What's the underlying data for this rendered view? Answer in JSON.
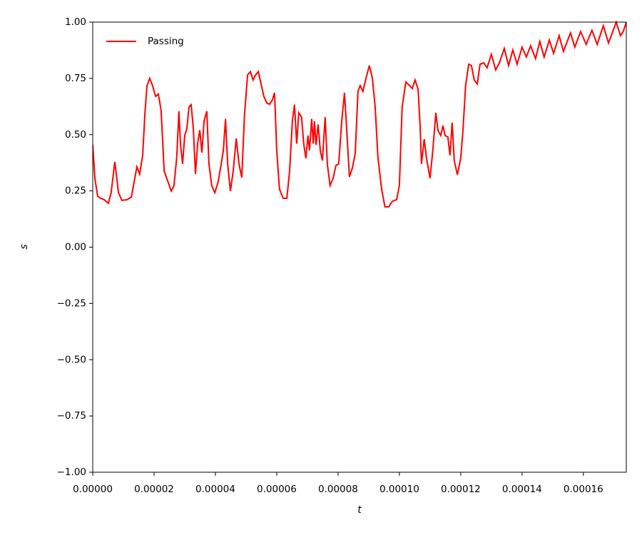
{
  "chart_data": {
    "type": "line",
    "xlabel": "t",
    "ylabel": "s",
    "xlim": [
      0,
      0.000174
    ],
    "ylim": [
      -1,
      1
    ],
    "xticks": [
      {
        "value": 0,
        "label": "0.00000"
      },
      {
        "value": 2e-05,
        "label": "0.00002"
      },
      {
        "value": 4e-05,
        "label": "0.00004"
      },
      {
        "value": 6e-05,
        "label": "0.00006"
      },
      {
        "value": 8e-05,
        "label": "0.00008"
      },
      {
        "value": 0.0001,
        "label": "0.00010"
      },
      {
        "value": 0.00012,
        "label": "0.00012"
      },
      {
        "value": 0.00014,
        "label": "0.00014"
      },
      {
        "value": 0.00016,
        "label": "0.00016"
      }
    ],
    "yticks": [
      {
        "value": -1,
        "label": "−1.00"
      },
      {
        "value": -0.75,
        "label": "−0.75"
      },
      {
        "value": -0.5,
        "label": "−0.50"
      },
      {
        "value": -0.25,
        "label": "−0.25"
      },
      {
        "value": 0,
        "label": "0.00"
      },
      {
        "value": 0.25,
        "label": "0.25"
      },
      {
        "value": 0.5,
        "label": "0.50"
      },
      {
        "value": 0.75,
        "label": "0.75"
      },
      {
        "value": 1,
        "label": "1.00"
      }
    ],
    "legend": "upper left",
    "x": [
      0,
      7e-07,
      1.6e-06,
      2.6e-06,
      3.7e-06,
      5.1e-06,
      6e-06,
      7.2e-06,
      8.4e-06,
      9.5e-06,
      1.12e-05,
      1.26e-05,
      1.35e-05,
      1.44e-05,
      1.53e-05,
      1.63e-05,
      1.7e-05,
      1.77e-05,
      1.86e-05,
      1.95e-05,
      2.05e-05,
      2.14e-05,
      2.23e-05,
      2.33e-05,
      2.44e-05,
      2.56e-05,
      2.65e-05,
      2.74e-05,
      2.81e-05,
      2.86e-05,
      2.93e-05,
      3e-05,
      3.07e-05,
      3.14e-05,
      3.21e-05,
      3.28e-05,
      3.35e-05,
      3.42e-05,
      3.49e-05,
      3.56e-05,
      3.63e-05,
      3.72e-05,
      3.79e-05,
      3.88e-05,
      3.98e-05,
      4.09e-05,
      4.19e-05,
      4.26e-05,
      4.33e-05,
      4.4e-05,
      4.49e-05,
      4.58e-05,
      4.68e-05,
      4.77e-05,
      4.86e-05,
      4.95e-05,
      5.05e-05,
      5.14e-05,
      5.23e-05,
      5.3e-05,
      5.4e-05,
      5.49e-05,
      5.58e-05,
      5.68e-05,
      5.77e-05,
      5.86e-05,
      5.93e-05,
      6e-05,
      6.09e-05,
      6.21e-05,
      6.33e-05,
      6.42e-05,
      6.51e-05,
      6.58e-05,
      6.65e-05,
      6.72e-05,
      6.81e-05,
      6.88e-05,
      6.95e-05,
      7.02e-05,
      7.07e-05,
      7.14e-05,
      7.19e-05,
      7.23e-05,
      7.28e-05,
      7.35e-05,
      7.42e-05,
      7.49e-05,
      7.58e-05,
      7.65e-05,
      7.74e-05,
      7.84e-05,
      7.93e-05,
      8.02e-05,
      8.12e-05,
      8.21e-05,
      8.28e-05,
      8.37e-05,
      8.47e-05,
      8.56e-05,
      8.65e-05,
      8.72e-05,
      8.81e-05,
      8.91e-05,
      9.02e-05,
      9.12e-05,
      9.21e-05,
      9.3e-05,
      9.42e-05,
      9.53e-05,
      9.65e-05,
      9.77e-05,
      9.91e-05,
      0.0001,
      0.0001009,
      0.0001021,
      0.0001033,
      0.0001042,
      0.0001051,
      0.0001061,
      0.0001068,
      0.0001072,
      0.0001081,
      0.0001088,
      0.00011,
      0.0001109,
      0.0001119,
      0.0001126,
      0.0001135,
      0.0001142,
      0.0001149,
      0.0001158,
      0.0001165,
      0.0001172,
      0.0001179,
      0.0001189,
      0.00012,
      0.0001207,
      0.0001216,
      0.0001226,
      0.0001235,
      0.0001244,
      0.0001254,
      0.0001263,
      0.0001275,
      0.0001286,
      0.00013,
      0.0001314,
      0.0001326,
      0.0001342,
      0.0001356,
      0.000137,
      0.0001384,
      0.00014,
      0.0001414,
      0.0001428,
      0.0001444,
      0.0001458,
      0.0001472,
      0.0001489,
      0.0001503,
      0.0001521,
      0.0001535,
      0.0001558,
      0.0001572,
      0.0001591,
      0.0001609,
      0.0001628,
      0.0001645,
      0.0001665,
      0.0001682,
      0.0001707,
      0.0001721,
      0.000173,
      0.000174
    ],
    "series": [
      {
        "name": "Passing",
        "color": "red",
        "values": [
          0.455,
          0.306,
          0.227,
          0.217,
          0.211,
          0.195,
          0.242,
          0.379,
          0.242,
          0.208,
          0.211,
          0.223,
          0.29,
          0.357,
          0.325,
          0.41,
          0.59,
          0.718,
          0.75,
          0.718,
          0.67,
          0.68,
          0.607,
          0.338,
          0.296,
          0.249,
          0.274,
          0.4,
          0.604,
          0.46,
          0.37,
          0.496,
          0.528,
          0.623,
          0.633,
          0.528,
          0.325,
          0.46,
          0.52,
          0.42,
          0.56,
          0.604,
          0.37,
          0.274,
          0.242,
          0.29,
          0.37,
          0.43,
          0.57,
          0.37,
          0.249,
          0.338,
          0.483,
          0.37,
          0.309,
          0.59,
          0.765,
          0.78,
          0.743,
          0.763,
          0.78,
          0.725,
          0.67,
          0.64,
          0.635,
          0.655,
          0.686,
          0.43,
          0.258,
          0.217,
          0.217,
          0.338,
          0.56,
          0.633,
          0.46,
          0.597,
          0.578,
          0.46,
          0.395,
          0.496,
          0.43,
          0.57,
          0.46,
          0.56,
          0.455,
          0.545,
          0.43,
          0.385,
          0.578,
          0.37,
          0.274,
          0.306,
          0.363,
          0.37,
          0.56,
          0.686,
          0.528,
          0.312,
          0.353,
          0.417,
          0.692,
          0.718,
          0.692,
          0.75,
          0.807,
          0.75,
          0.623,
          0.401,
          0.258,
          0.179,
          0.179,
          0.204,
          0.211,
          0.274,
          0.623,
          0.734,
          0.718,
          0.705,
          0.743,
          0.702,
          0.528,
          0.37,
          0.48,
          0.4,
          0.306,
          0.43,
          0.597,
          0.518,
          0.496,
          0.54,
          0.496,
          0.49,
          0.408,
          0.553,
          0.385,
          0.322,
          0.395,
          0.512,
          0.718,
          0.813,
          0.807,
          0.743,
          0.725,
          0.813,
          0.819,
          0.797,
          0.857,
          0.788,
          0.819,
          0.883,
          0.807,
          0.876,
          0.813,
          0.889,
          0.845,
          0.895,
          0.838,
          0.914,
          0.845,
          0.92,
          0.861,
          0.94,
          0.87,
          0.952,
          0.889,
          0.958,
          0.901,
          0.964,
          0.901,
          0.984,
          0.907,
          1.0,
          0.94,
          0.958,
          1.0
        ]
      }
    ]
  }
}
